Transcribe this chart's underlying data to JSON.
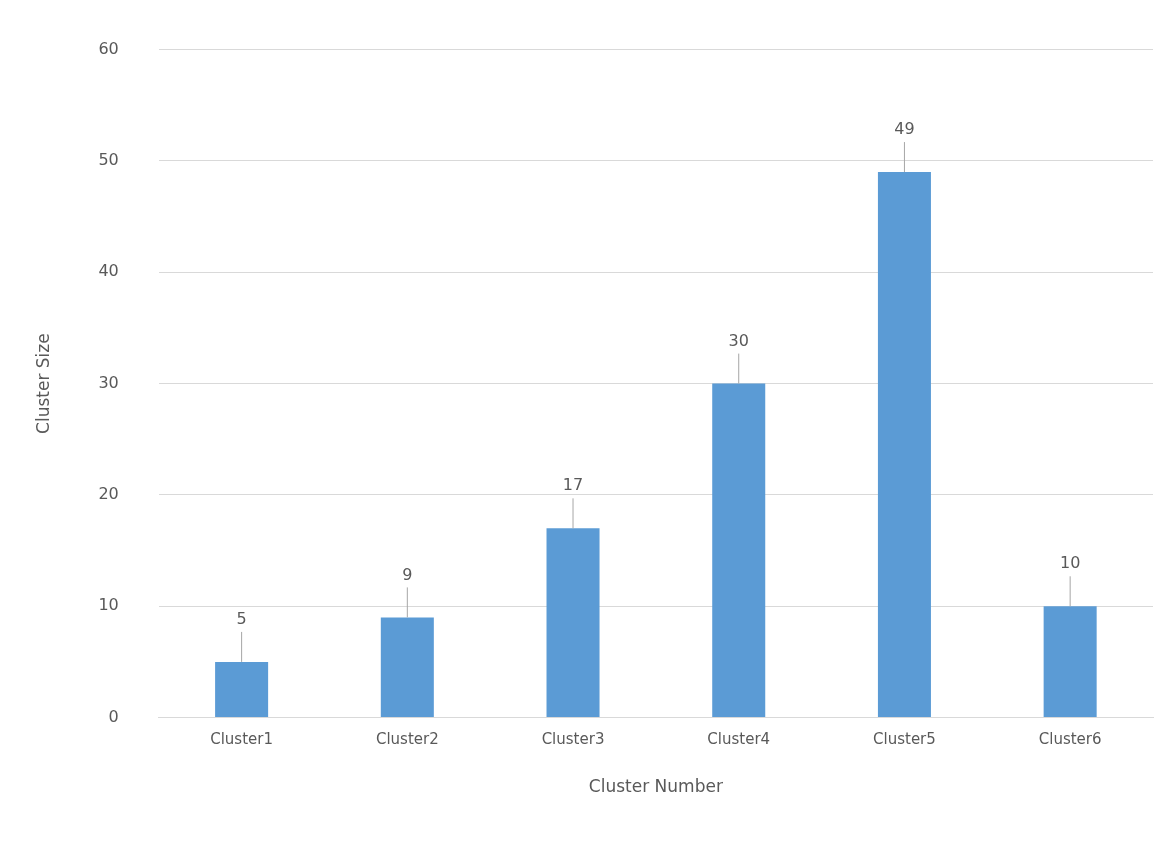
{
  "chart_data": {
    "type": "bar",
    "xlabel": "Cluster Number",
    "ylabel": "Cluster Size",
    "categories": [
      "Cluster1",
      "Cluster2",
      "Cluster3",
      "Cluster4",
      "Cluster5",
      "Cluster6"
    ],
    "values": [
      5,
      9,
      17,
      30,
      49,
      10
    ],
    "color": "#5b9bd5",
    "ylim": [
      0,
      60
    ],
    "yticks": [
      0,
      10,
      20,
      30,
      40,
      50,
      60
    ],
    "grid": "y",
    "legend": false,
    "data_labels": true
  }
}
